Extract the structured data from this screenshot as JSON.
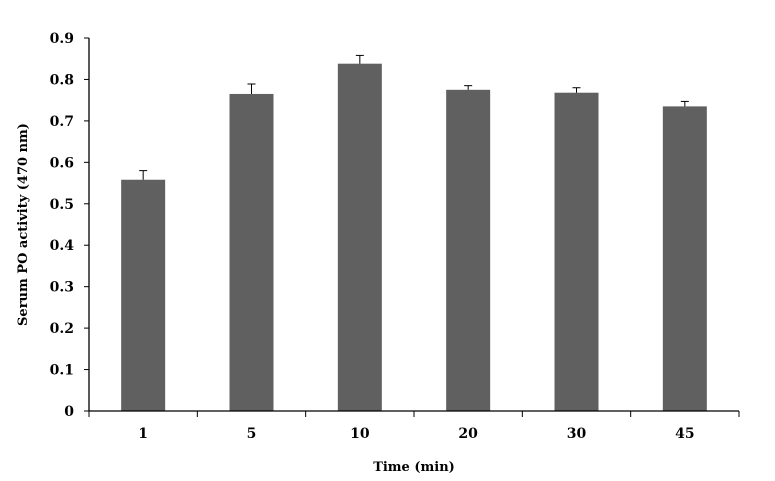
{
  "chart_data": {
    "type": "bar",
    "xlabel": "Time (min)",
    "ylabel": "Serum PO activity (470 nm)",
    "categories": [
      "1",
      "5",
      "10",
      "20",
      "30",
      "45"
    ],
    "values": [
      0.558,
      0.765,
      0.838,
      0.775,
      0.768,
      0.735
    ],
    "errors": [
      0.022,
      0.024,
      0.02,
      0.01,
      0.012,
      0.012
    ],
    "ylim": [
      0,
      0.9
    ],
    "yticks": [
      "0",
      "0.1",
      "0.2",
      "0.3",
      "0.4",
      "0.5",
      "0.6",
      "0.7",
      "0.8",
      "0.9"
    ],
    "grid": false,
    "bar_color": "#606060",
    "error_bar_color": "#000000"
  }
}
